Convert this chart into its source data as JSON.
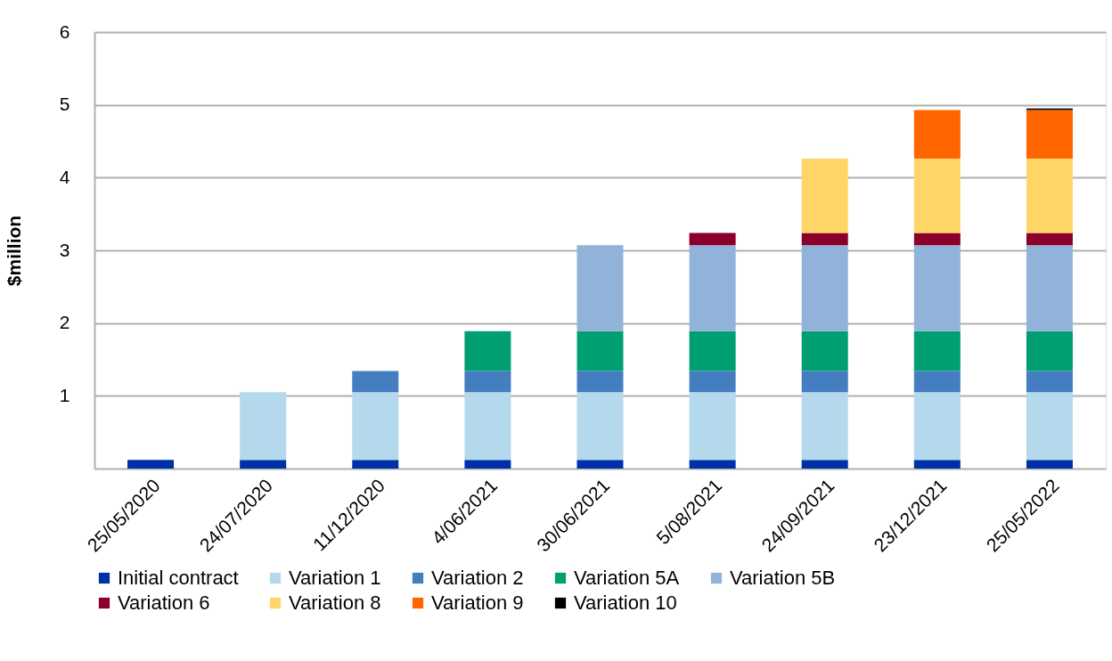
{
  "chart_data": {
    "type": "bar",
    "stacked": true,
    "ylabel": "$million",
    "categories": [
      "25/05/2020",
      "24/07/2020",
      "11/12/2020",
      "4/06/2021",
      "30/06/2021",
      "5/08/2021",
      "24/09/2021",
      "23/12/2021",
      "25/05/2022"
    ],
    "ylim": [
      0,
      6
    ],
    "yticks": [
      1,
      2,
      3,
      4,
      5,
      6
    ],
    "grid": "y",
    "legend": "bottom",
    "series": [
      {
        "name": "Initial contract",
        "color": "#0030a8",
        "values": [
          0.12,
          0.12,
          0.12,
          0.12,
          0.12,
          0.12,
          0.12,
          0.12,
          0.12
        ]
      },
      {
        "name": "Variation 1",
        "color": "#b4d9ec",
        "values": [
          null,
          0.93,
          0.93,
          0.93,
          0.93,
          0.93,
          0.93,
          0.93,
          0.93
        ]
      },
      {
        "name": "Variation 2",
        "color": "#457dc1",
        "values": [
          null,
          null,
          0.29,
          0.29,
          0.29,
          0.29,
          0.29,
          0.29,
          0.29
        ]
      },
      {
        "name": "Variation 5A",
        "color": "#009e73",
        "values": [
          null,
          null,
          null,
          0.55,
          0.55,
          0.55,
          0.55,
          0.55,
          0.55
        ]
      },
      {
        "name": "Variation 5B",
        "color": "#91b3da",
        "values": [
          null,
          null,
          null,
          null,
          1.18,
          1.18,
          1.18,
          1.18,
          1.18
        ]
      },
      {
        "name": "Variation 6",
        "color": "#8b002b",
        "values": [
          null,
          null,
          null,
          null,
          null,
          0.17,
          0.17,
          0.17,
          0.17
        ]
      },
      {
        "name": "Variation 8",
        "color": "#ffd567",
        "values": [
          null,
          null,
          null,
          null,
          null,
          null,
          1.02,
          1.02,
          1.02
        ]
      },
      {
        "name": "Variation 9",
        "color": "#ff6600",
        "values": [
          null,
          null,
          null,
          null,
          null,
          null,
          null,
          0.67,
          0.67
        ]
      },
      {
        "name": "Variation 10",
        "color": "#000000",
        "values": [
          null,
          null,
          null,
          null,
          null,
          null,
          null,
          null,
          0.02
        ]
      }
    ]
  }
}
